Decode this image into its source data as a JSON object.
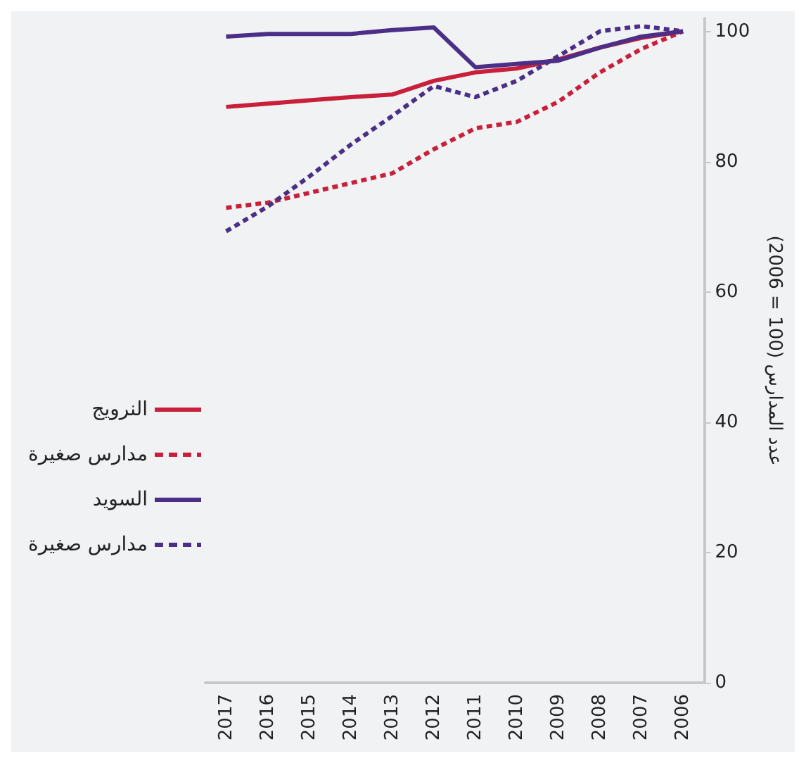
{
  "chart_data": {
    "type": "line",
    "ylabel": "عدد المدارس (100 = 2006)",
    "categories": [
      "2017",
      "2016",
      "2015",
      "2014",
      "2013",
      "2012",
      "2011",
      "2010",
      "2009",
      "2008",
      "2007",
      "2006"
    ],
    "series": [
      {
        "name": "النرويج",
        "color": "#c8203a",
        "line_style": "solid",
        "values": [
          88.4,
          88.9,
          89.4,
          89.9,
          90.3,
          92.4,
          93.7,
          94.3,
          95.7,
          97.5,
          99,
          100
        ]
      },
      {
        "name": "مدارس صغيرة",
        "color": "#c8203a",
        "line_style": "dashed",
        "values": [
          72.9,
          73.7,
          75.2,
          76.7,
          78.2,
          81.9,
          85.1,
          86.1,
          89.2,
          93.7,
          97.3,
          100
        ]
      },
      {
        "name": "السويد",
        "color": "#4b2f86",
        "line_style": "solid",
        "values": [
          99.2,
          99.6,
          99.6,
          99.6,
          100.2,
          100.6,
          94.5,
          95,
          95.5,
          97.5,
          99.2,
          100
        ]
      },
      {
        "name": "مدارس صغيرة",
        "color": "#4b2f86",
        "line_style": "dashed",
        "values": [
          69.3,
          73.1,
          77.7,
          82.6,
          87,
          91.6,
          89.9,
          92.4,
          96.2,
          100,
          100.8,
          100
        ]
      }
    ],
    "ylim": [
      0,
      102
    ],
    "yticks": [
      0,
      20,
      40,
      60,
      80,
      100
    ],
    "grid": false,
    "legend": "left",
    "marker": "none"
  }
}
